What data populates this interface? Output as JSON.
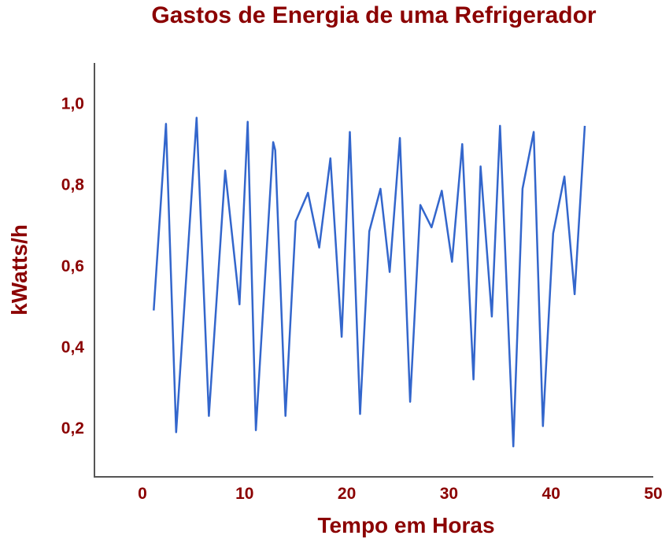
{
  "chart_data": {
    "type": "line",
    "title": "Gastos de Energia de uma Refrigerador",
    "xlabel": "Tempo em Horas",
    "ylabel": "kWatts/h",
    "xlim": [
      -4.7,
      50
    ],
    "ylim": [
      0.08,
      1.1
    ],
    "xticks": [
      0,
      10,
      20,
      30,
      40,
      50
    ],
    "xtick_labels": [
      "0",
      "10",
      "20",
      "30",
      "40",
      "50"
    ],
    "yticks": [
      0.2,
      0.4,
      0.6,
      0.8,
      1.0
    ],
    "ytick_labels": [
      "0,2",
      "0,4",
      "0,6",
      "0,8",
      "1,0"
    ],
    "grid": false,
    "legend": "none",
    "colors": {
      "line": "#3366cc",
      "text": "#8b0000",
      "axis": "#555555"
    },
    "series": [
      {
        "x": [
          1.1,
          2.3,
          3.3,
          5.3,
          6.5,
          8.1,
          9.5,
          10.3,
          11.1,
          12.8,
          13.0,
          14.0,
          15.0,
          16.2,
          17.3,
          18.4,
          19.5,
          20.3,
          21.3,
          22.2,
          23.3,
          24.2,
          25.2,
          26.2,
          27.2,
          28.3,
          29.3,
          30.3,
          31.3,
          32.4,
          33.1,
          34.2,
          35.0,
          36.3,
          37.2,
          38.3,
          39.2,
          40.2,
          41.3,
          42.3,
          43.3
        ],
        "y": [
          0.49,
          0.95,
          0.19,
          0.965,
          0.23,
          0.835,
          0.505,
          0.955,
          0.195,
          0.905,
          0.885,
          0.23,
          0.71,
          0.78,
          0.645,
          0.865,
          0.425,
          0.93,
          0.235,
          0.685,
          0.79,
          0.585,
          0.915,
          0.265,
          0.75,
          0.695,
          0.785,
          0.61,
          0.9,
          0.32,
          0.845,
          0.475,
          0.945,
          0.155,
          0.79,
          0.93,
          0.205,
          0.68,
          0.82,
          0.53,
          0.945
        ]
      }
    ]
  }
}
